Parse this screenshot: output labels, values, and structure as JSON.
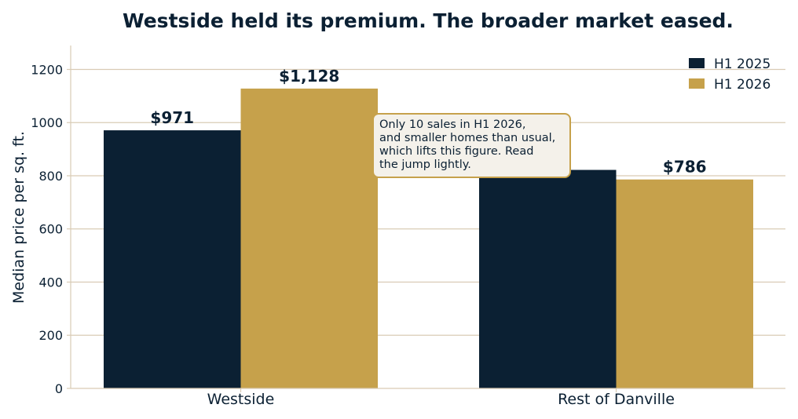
{
  "chart_data": {
    "type": "bar",
    "title": "Westside held its premium. The broader market eased.",
    "xlabel": "",
    "ylabel": "Median price per sq. ft.",
    "categories": [
      "Westside",
      "Rest of Danville"
    ],
    "series": [
      {
        "name": "H1 2025",
        "values": [
          971,
          822
        ],
        "color": "#0b2033"
      },
      {
        "name": "H1 2026",
        "values": [
          1128,
          786
        ],
        "color": "#c6a14b"
      }
    ],
    "data_labels": [
      {
        "series": 0,
        "category": 0,
        "text": "$971"
      },
      {
        "series": 1,
        "category": 0,
        "text": "$1,128"
      },
      {
        "series": 1,
        "category": 1,
        "text": "$786"
      }
    ],
    "ylim": [
      0,
      1290
    ],
    "yticks": [
      0,
      200,
      400,
      600,
      800,
      1000,
      1200
    ],
    "ytick_labels": [
      "0",
      "200",
      "400",
      "600",
      "800",
      "1000",
      "1200"
    ],
    "grid": "horizontal",
    "legend_position": "top-right",
    "annotation": {
      "text": "Only 10 sales in H1 2026, and smaller homes than usual, which lifts this figure. Read the jump lightly.",
      "lines": [
        "Only 10 sales in H1 2026,",
        "and smaller homes than usual,",
        "which lifts this figure. Read",
        "the jump lightly."
      ]
    },
    "colors": {
      "text": "#0b2033",
      "grid": "#d9cbb5",
      "axis": "#d9cbb5",
      "annotation_bg": "#f4f1ea",
      "annotation_border": "#c6a14b"
    }
  }
}
